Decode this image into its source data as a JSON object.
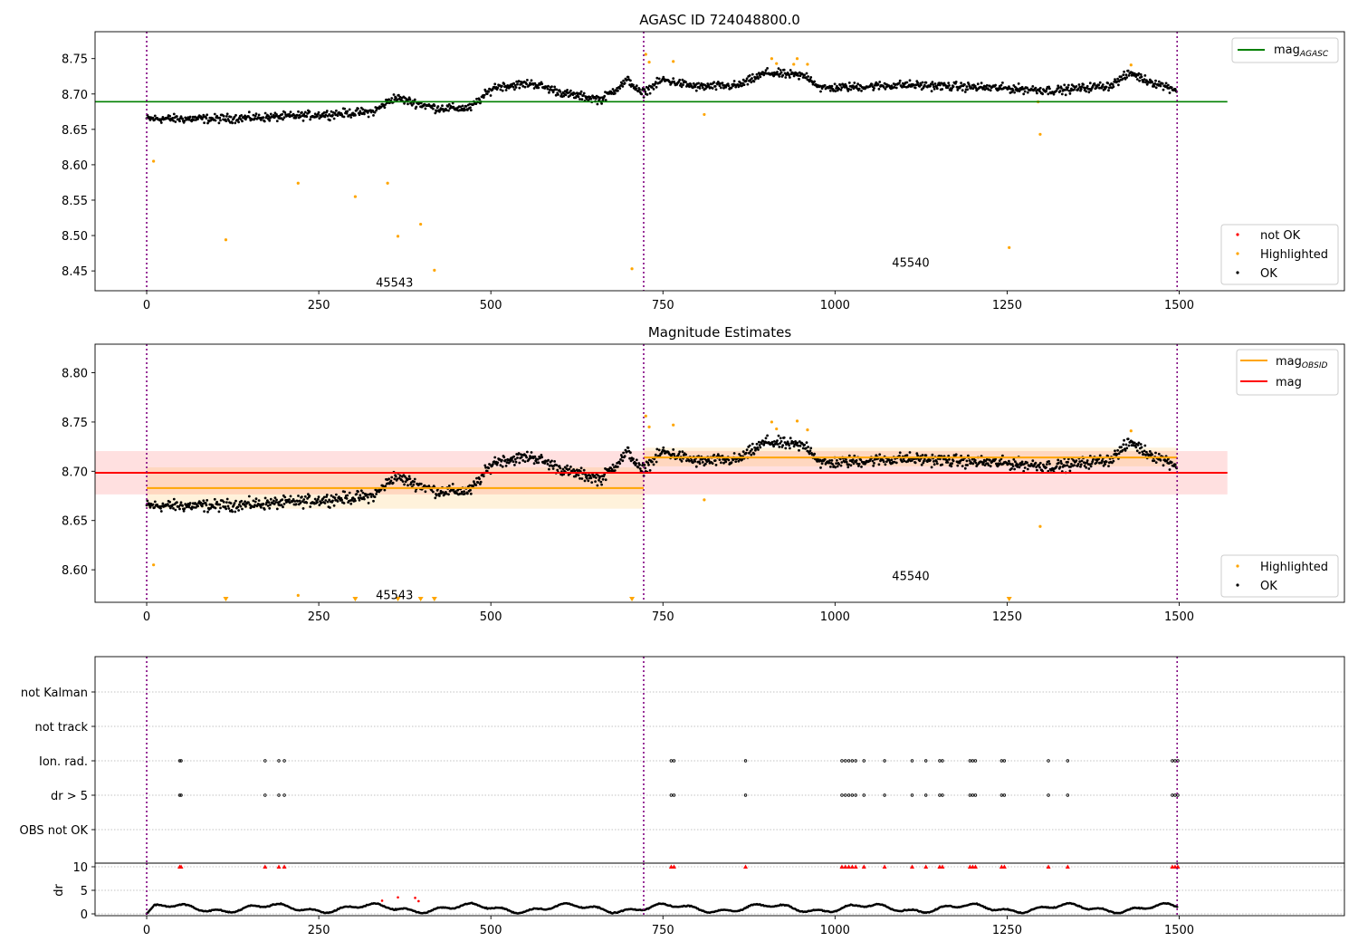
{
  "chart_data": [
    {
      "type": "scatter",
      "title": "AGASC ID 724048800.0",
      "xlim": [
        -75,
        1740
      ],
      "ylim": [
        8.422,
        8.788
      ],
      "xticks": [
        0,
        250,
        500,
        750,
        1000,
        1250,
        1500
      ],
      "yticks": [
        8.45,
        8.5,
        8.55,
        8.6,
        8.65,
        8.7,
        8.75
      ],
      "ytick_labels": [
        "8.45",
        "8.50",
        "8.55",
        "8.60",
        "8.65",
        "8.70",
        "8.75"
      ],
      "obs_boundaries": [
        0,
        722,
        1497
      ],
      "hlines": [
        {
          "name": "mag_AGASC",
          "y": 8.689,
          "x": [
            -75,
            1570
          ],
          "color": "#008000"
        }
      ],
      "legend_top": [
        {
          "label": "mag",
          "sub": "AGASC",
          "color": "#008000"
        }
      ],
      "legend_bottom": [
        {
          "label": "not OK",
          "color": "#ff0000"
        },
        {
          "label": "Highlighted",
          "color": "#ffa500"
        },
        {
          "label": "OK",
          "color": "#000000"
        }
      ],
      "annotations": [
        {
          "text": "45543",
          "x": 360,
          "y": 8.434
        },
        {
          "text": "45540",
          "x": 1110,
          "y": 8.462
        }
      ],
      "highlighted": [
        [
          10,
          8.605
        ],
        [
          115,
          8.494
        ],
        [
          220,
          8.574
        ],
        [
          303,
          8.555
        ],
        [
          350,
          8.574
        ],
        [
          365,
          8.499
        ],
        [
          398,
          8.516
        ],
        [
          418,
          8.451
        ],
        [
          705,
          8.453
        ],
        [
          725,
          8.756
        ],
        [
          730,
          8.745
        ],
        [
          765,
          8.746
        ],
        [
          810,
          8.671
        ],
        [
          908,
          8.75
        ],
        [
          915,
          8.743
        ],
        [
          940,
          8.742
        ],
        [
          945,
          8.75
        ],
        [
          960,
          8.742
        ],
        [
          1253,
          8.483
        ],
        [
          1298,
          8.643
        ],
        [
          1295,
          8.689
        ],
        [
          1430,
          8.741
        ]
      ],
      "ok_trend": [
        [
          0,
          8.665
        ],
        [
          100,
          8.665
        ],
        [
          200,
          8.668
        ],
        [
          330,
          8.675
        ],
        [
          360,
          8.695
        ],
        [
          420,
          8.68
        ],
        [
          470,
          8.68
        ],
        [
          505,
          8.71
        ],
        [
          560,
          8.715
        ],
        [
          610,
          8.7
        ],
        [
          660,
          8.692
        ],
        [
          700,
          8.72
        ],
        [
          718,
          8.7
        ],
        [
          750,
          8.72
        ],
        [
          800,
          8.71
        ],
        [
          860,
          8.712
        ],
        [
          900,
          8.73
        ],
        [
          960,
          8.725
        ],
        [
          980,
          8.708
        ],
        [
          1100,
          8.713
        ],
        [
          1250,
          8.708
        ],
        [
          1320,
          8.705
        ],
        [
          1400,
          8.712
        ],
        [
          1430,
          8.73
        ],
        [
          1450,
          8.72
        ],
        [
          1497,
          8.706
        ]
      ]
    },
    {
      "type": "scatter",
      "title": "Magnitude Estimates",
      "xlim": [
        -75,
        1740
      ],
      "ylim": [
        8.567,
        8.829
      ],
      "xticks": [
        0,
        250,
        500,
        750,
        1000,
        1250,
        1500
      ],
      "yticks": [
        8.6,
        8.65,
        8.7,
        8.75,
        8.8
      ],
      "ytick_labels": [
        "8.60",
        "8.65",
        "8.70",
        "8.75",
        "8.80"
      ],
      "obs_boundaries": [
        0,
        722,
        1497
      ],
      "hlines": [
        {
          "name": "mag",
          "y": 8.6985,
          "x": [
            -75,
            1570
          ],
          "band": [
            8.6765,
            8.7205
          ],
          "color": "#ff0000"
        },
        {
          "name": "mag_OBSID 45543",
          "y": 8.683,
          "x": [
            0,
            722
          ],
          "band": [
            8.662,
            8.704
          ],
          "color": "#ffa500"
        },
        {
          "name": "mag_OBSID 45540",
          "y": 8.714,
          "x": [
            722,
            1497
          ],
          "band": [
            8.705,
            8.724
          ],
          "color": "#ffa500"
        }
      ],
      "legend_top": [
        {
          "label": "mag",
          "sub": "OBSID",
          "color": "#ffa500"
        },
        {
          "label": "mag",
          "sub": "",
          "color": "#ff0000"
        }
      ],
      "legend_bottom": [
        {
          "label": "Highlighted",
          "color": "#ffa500"
        },
        {
          "label": "OK",
          "color": "#000000"
        }
      ],
      "annotations": [
        {
          "text": "45543",
          "x": 360,
          "y": 8.575
        },
        {
          "text": "45540",
          "x": 1110,
          "y": 8.594
        }
      ],
      "highlighted": [
        [
          10,
          8.605
        ],
        [
          220,
          8.574
        ],
        [
          725,
          8.756
        ],
        [
          730,
          8.745
        ],
        [
          765,
          8.747
        ],
        [
          810,
          8.671
        ],
        [
          908,
          8.75
        ],
        [
          915,
          8.743
        ],
        [
          945,
          8.751
        ],
        [
          960,
          8.742
        ],
        [
          1298,
          8.644
        ],
        [
          1430,
          8.741
        ]
      ],
      "offscale_markers_x": [
        115,
        303,
        365,
        398,
        418,
        705,
        1253
      ],
      "ok_trend": [
        [
          0,
          8.665
        ],
        [
          100,
          8.665
        ],
        [
          200,
          8.668
        ],
        [
          330,
          8.675
        ],
        [
          360,
          8.695
        ],
        [
          420,
          8.68
        ],
        [
          470,
          8.68
        ],
        [
          505,
          8.71
        ],
        [
          560,
          8.715
        ],
        [
          610,
          8.7
        ],
        [
          660,
          8.692
        ],
        [
          700,
          8.72
        ],
        [
          718,
          8.7
        ],
        [
          750,
          8.72
        ],
        [
          800,
          8.71
        ],
        [
          860,
          8.712
        ],
        [
          900,
          8.73
        ],
        [
          960,
          8.725
        ],
        [
          980,
          8.708
        ],
        [
          1100,
          8.713
        ],
        [
          1250,
          8.708
        ],
        [
          1320,
          8.705
        ],
        [
          1400,
          8.712
        ],
        [
          1430,
          8.73
        ],
        [
          1450,
          8.72
        ],
        [
          1497,
          8.706
        ]
      ]
    },
    {
      "type": "scatter",
      "title": "",
      "xlim": [
        -75,
        1740
      ],
      "flag_rows": [
        "not Kalman",
        "not track",
        "Ion. rad.",
        "dr > 5",
        "OBS not OK"
      ],
      "flag_x": [
        48,
        50,
        172,
        192,
        200,
        762,
        766,
        870,
        1010,
        1015,
        1020,
        1025,
        1030,
        1042,
        1072,
        1112,
        1132,
        1152,
        1156,
        1196,
        1200,
        1204,
        1242,
        1246,
        1310,
        1338,
        1490,
        1494,
        1498
      ],
      "obs_boundaries": [
        0,
        722,
        1497
      ]
    },
    {
      "type": "scatter",
      "title": "",
      "ylabel": "dr",
      "xlim": [
        -75,
        1740
      ],
      "ylim": [
        -0.5,
        10.5
      ],
      "xticks": [
        0,
        250,
        500,
        750,
        1000,
        1250,
        1500
      ],
      "yticks": [
        0,
        5,
        10
      ],
      "ytick_labels": [
        "0",
        "5",
        "10"
      ],
      "obs_boundaries": [
        0,
        722,
        1497
      ],
      "clipped_x": [
        48,
        50,
        172,
        192,
        200,
        762,
        766,
        870,
        1010,
        1015,
        1020,
        1025,
        1030,
        1042,
        1072,
        1112,
        1132,
        1152,
        1156,
        1196,
        1200,
        1204,
        1242,
        1246,
        1310,
        1338,
        1490,
        1494,
        1498
      ],
      "red_points": [
        [
          342,
          2.8
        ],
        [
          365,
          3.5
        ],
        [
          390,
          3.4
        ],
        [
          395,
          2.7
        ]
      ]
    }
  ]
}
